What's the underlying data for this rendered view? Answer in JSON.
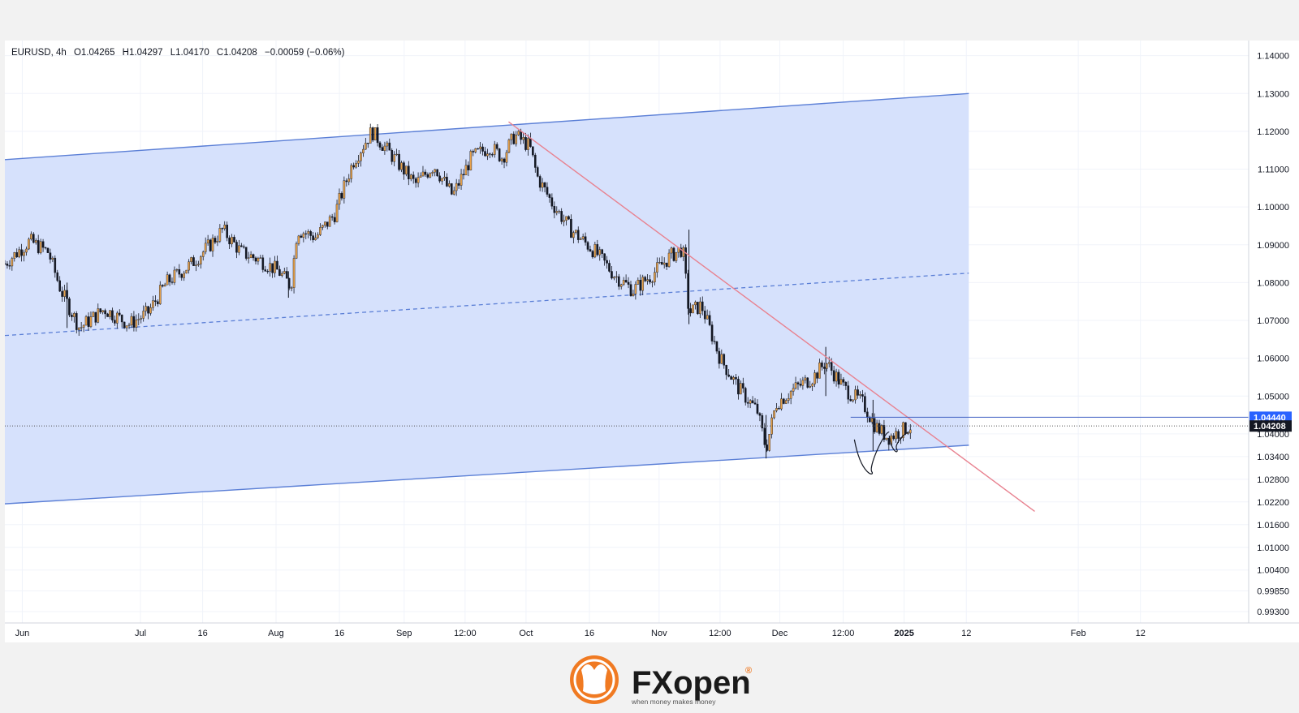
{
  "chart_data": {
    "type": "candlestick",
    "legend": {
      "symbol": "EURUSD",
      "interval": "4h",
      "open": "O1.04265",
      "high": "H1.04297",
      "low": "L1.04170",
      "close": "C1.04208",
      "change": "−0.00059 (−0.06%)"
    },
    "ylim": [
      0.99,
      1.144
    ],
    "price_ticks": [
      "1.14000",
      "1.13000",
      "1.12000",
      "1.11000",
      "1.10000",
      "1.09000",
      "1.08000",
      "1.07000",
      "1.06000",
      "1.05000",
      "1.04000",
      "1.03400",
      "1.02800",
      "1.02200",
      "1.01600",
      "1.01000",
      "1.00400",
      "0.99850",
      "0.99300"
    ],
    "time_ticks": [
      "Jun",
      "Jul",
      "16",
      "Aug",
      "16",
      "Sep",
      "12:00",
      "Oct",
      "16",
      "Nov",
      "12:00",
      "Dec",
      "12:00",
      "2025",
      "12",
      "Feb",
      "12"
    ],
    "bold_time_ticks": [
      "2025"
    ],
    "price_labels": [
      {
        "text": "1.04440",
        "style": "blue"
      },
      {
        "text": "1.04208",
        "style": "dark"
      }
    ],
    "channel": {
      "upper": [
        [
          0.0,
          1.1125
        ],
        [
          0.775,
          1.13
        ]
      ],
      "lower": [
        [
          0.0,
          1.0215
        ],
        [
          0.775,
          1.037
        ]
      ],
      "mid": [
        [
          0.0,
          1.066
        ],
        [
          0.775,
          1.0825
        ]
      ]
    },
    "trendline": [
      [
        0.405,
        1.1225
      ],
      [
        0.828,
        1.0195
      ]
    ],
    "resistance_level": {
      "x_start": 0.68,
      "price": 1.0444
    },
    "current_price": 1.04208,
    "path": [
      [
        0.0,
        1.085
      ],
      [
        0.02,
        1.091
      ],
      [
        0.035,
        1.088
      ],
      [
        0.045,
        1.078
      ],
      [
        0.06,
        1.068
      ],
      [
        0.08,
        1.073
      ],
      [
        0.1,
        1.069
      ],
      [
        0.115,
        1.072
      ],
      [
        0.13,
        1.08
      ],
      [
        0.15,
        1.085
      ],
      [
        0.165,
        1.09
      ],
      [
        0.175,
        1.094
      ],
      [
        0.19,
        1.088
      ],
      [
        0.205,
        1.086
      ],
      [
        0.22,
        1.083
      ],
      [
        0.23,
        1.079
      ],
      [
        0.235,
        1.094
      ],
      [
        0.25,
        1.092
      ],
      [
        0.265,
        1.098
      ],
      [
        0.28,
        1.112
      ],
      [
        0.295,
        1.12
      ],
      [
        0.31,
        1.114
      ],
      [
        0.33,
        1.106
      ],
      [
        0.345,
        1.111
      ],
      [
        0.36,
        1.103
      ],
      [
        0.375,
        1.113
      ],
      [
        0.39,
        1.116
      ],
      [
        0.4,
        1.113
      ],
      [
        0.41,
        1.119
      ],
      [
        0.422,
        1.116
      ],
      [
        0.428,
        1.108
      ],
      [
        0.44,
        1.101
      ],
      [
        0.455,
        1.094
      ],
      [
        0.475,
        1.088
      ],
      [
        0.49,
        1.082
      ],
      [
        0.505,
        1.078
      ],
      [
        0.52,
        1.082
      ],
      [
        0.535,
        1.087
      ],
      [
        0.545,
        1.089
      ],
      [
        0.55,
        1.072
      ],
      [
        0.56,
        1.074
      ],
      [
        0.575,
        1.06
      ],
      [
        0.59,
        1.052
      ],
      [
        0.605,
        1.046
      ],
      [
        0.612,
        1.036
      ],
      [
        0.62,
        1.048
      ],
      [
        0.635,
        1.052
      ],
      [
        0.65,
        1.055
      ],
      [
        0.66,
        1.059
      ],
      [
        0.675,
        1.052
      ],
      [
        0.69,
        1.048
      ],
      [
        0.7,
        1.042
      ],
      [
        0.71,
        1.039
      ],
      [
        0.722,
        1.041
      ],
      [
        0.728,
        1.042
      ]
    ],
    "spikes": [
      [
        0.05,
        1.068,
        1.08
      ],
      [
        0.228,
        1.076,
        1.083
      ],
      [
        0.55,
        1.069,
        1.094
      ],
      [
        0.612,
        1.0335,
        1.045
      ],
      [
        0.66,
        1.05,
        1.063
      ],
      [
        0.698,
        1.0355,
        1.049
      ]
    ],
    "pattern_arcs": [
      {
        "from": [
          0.683,
          1.0385
        ],
        "low": [
          0.697,
          1.03
        ],
        "to": [
          0.711,
          1.0405
        ]
      },
      {
        "from": [
          0.711,
          1.0395
        ],
        "low": [
          0.717,
          1.036
        ],
        "to": [
          0.727,
          1.0405
        ]
      }
    ],
    "colors": {
      "channel_fill": "#d4dffc",
      "channel_line": "#5b7fd6",
      "trendline": "#e88290",
      "resistance_line": "#3f5fc2",
      "candle_up": "#e8a24a",
      "candle_down": "#131722",
      "label_blue": "#2962ff",
      "label_dark": "#131722"
    },
    "logo": {
      "brand": "FXopen",
      "tagline": "when money makes money",
      "registered": "®"
    }
  }
}
